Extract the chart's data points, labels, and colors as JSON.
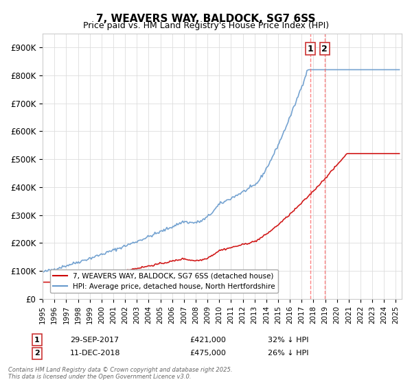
{
  "title": "7, WEAVERS WAY, BALDOCK, SG7 6SS",
  "subtitle": "Price paid vs. HM Land Registry's House Price Index (HPI)",
  "ylabel_ticks": [
    "£0",
    "£100K",
    "£200K",
    "£300K",
    "£400K",
    "£500K",
    "£600K",
    "£700K",
    "£800K",
    "£900K"
  ],
  "ytick_values": [
    0,
    100000,
    200000,
    300000,
    400000,
    500000,
    600000,
    700000,
    800000,
    900000
  ],
  "ylim": [
    0,
    950000
  ],
  "xlim_start": 1995.0,
  "xlim_end": 2025.5,
  "legend_line1": "7, WEAVERS WAY, BALDOCK, SG7 6SS (detached house)",
  "legend_line2": "HPI: Average price, detached house, North Hertfordshire",
  "legend_color1": "#cc0000",
  "legend_color2": "#6699cc",
  "marker1_x": 2017.75,
  "marker1_label": "1",
  "marker1_date": "29-SEP-2017",
  "marker1_price": "£421,000",
  "marker1_hpi": "32% ↓ HPI",
  "marker2_x": 2018.95,
  "marker2_label": "2",
  "marker2_date": "11-DEC-2018",
  "marker2_price": "£475,000",
  "marker2_hpi": "26% ↓ HPI",
  "vline_color": "#ff6666",
  "footer": "Contains HM Land Registry data © Crown copyright and database right 2025.\nThis data is licensed under the Open Government Licence v3.0.",
  "background_color": "#ffffff",
  "grid_color": "#dddddd"
}
